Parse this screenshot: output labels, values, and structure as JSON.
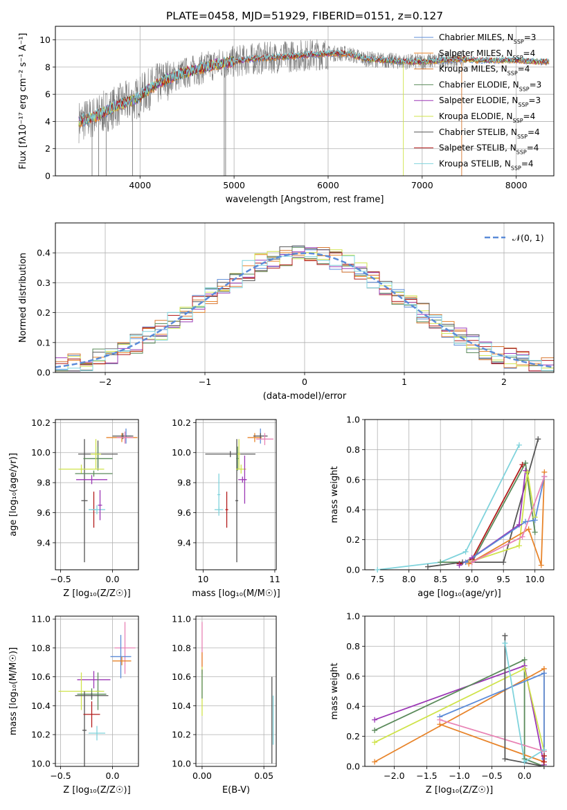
{
  "figure_title": "PLATE=0458, MJD=51929, FIBERID=0151, z=0.127",
  "colors": {
    "Chabrier MILES": "#5b8bd8",
    "Salpeter MILES": "#e8842a",
    "Kroupa MILES": "#d8762e",
    "Chabrier ELODIE": "#5a8a5a",
    "Salpeter ELODIE": "#9b37b5",
    "Kroupa ELODIE": "#cfe34a",
    "Chabrier STELIB": "#555555",
    "Salpeter STELIB": "#b21a1a",
    "Kroupa STELIB": "#7fd3dc",
    "pink": "#e882b4",
    "gauss": "#5b8bd8"
  },
  "chart_data": [
    {
      "id": "spectrum",
      "type": "line",
      "title": "PLATE=0458, MJD=51929, FIBERID=0151, z=0.127",
      "xlabel": "wavelength [Angstrom, rest frame]",
      "ylabel": "Flux [fλ10⁻¹⁷ erg cm⁻² s⁻¹ A⁻¹]",
      "xlim": [
        3100,
        8400
      ],
      "ylim": [
        0,
        11
      ],
      "xticks": [
        "4000",
        "5000",
        "6000",
        "7000",
        "8000"
      ],
      "yticks": [
        "0",
        "2",
        "4",
        "6",
        "8",
        "10"
      ],
      "legend": [
        "Chabrier MILES, N_SSP=3",
        "Salpeter MILES, N_SSP=4",
        "Kroupa MILES, N_SSP=4",
        "Chabrier ELODIE, N_SSP=3",
        "Salpeter ELODIE, N_SSP=3",
        "Kroupa ELODIE, N_SSP=4",
        "Chabrier STELIB, N_SSP=4",
        "Salpeter STELIB, N_SSP=4",
        "Kroupa STELIB, N_SSP=4"
      ],
      "legend_placement": "right",
      "continuum": {
        "x": [
          3350,
          3500,
          3650,
          3800,
          3950,
          4100,
          4250,
          4400,
          4600,
          4800,
          5000,
          5200,
          5400,
          5600,
          5800,
          6000,
          6200,
          6400,
          6600,
          6800,
          7000,
          7200,
          7400,
          7600,
          7800,
          8000,
          8200,
          8350
        ],
        "y": [
          4.0,
          4.3,
          4.8,
          5.3,
          5.6,
          6.4,
          7.0,
          7.4,
          7.8,
          8.2,
          8.4,
          8.6,
          8.7,
          8.8,
          8.9,
          9.0,
          9.0,
          8.6,
          8.5,
          8.4,
          8.4,
          8.5,
          8.6,
          8.5,
          8.5,
          8.5,
          8.4,
          8.4
        ]
      }
    },
    {
      "id": "residuals",
      "type": "histogram",
      "xlabel": "(data-model)/error",
      "ylabel": "Normed distribution",
      "xlim": [
        -2.5,
        2.5
      ],
      "ylim": [
        0,
        0.5
      ],
      "xticks": [
        "−2",
        "−1",
        "0",
        "1",
        "2"
      ],
      "yticks": [
        "0.0",
        "0.1",
        "0.2",
        "0.3",
        "0.4"
      ],
      "grid": true,
      "legend": [
        "𝒩(0, 1)"
      ],
      "legend_placement": "top-right",
      "bin_edges_range": [
        -2.5,
        2.5
      ],
      "bin_count": 40
    },
    {
      "id": "age_vs_Z",
      "type": "errorbar",
      "xlabel": "Z [log₁₀(Z/Z☉)]",
      "ylabel": "age  [log₁₀(age/yr)]",
      "xlim": [
        -0.55,
        0.25
      ],
      "ylim": [
        9.22,
        10.22
      ],
      "xticks": [
        "−0.5",
        "0.0"
      ],
      "yticks": [
        "9.4",
        "9.6",
        "9.8",
        "10.0",
        "10.2"
      ],
      "points": [
        {
          "model": "Chabrier MILES",
          "x": 0.13,
          "xerr": 0.05,
          "y": 10.11,
          "yerr": 0.05
        },
        {
          "model": "Salpeter MILES",
          "x": 0.09,
          "xerr": 0.15,
          "y": 10.1,
          "yerr": 0.03
        },
        {
          "model": "Chabrier STELIB",
          "x": 0.1,
          "xerr": 0.1,
          "y": 10.11,
          "yerr": 0.02
        },
        {
          "model": "pink",
          "x": 0.12,
          "xerr": 0.08,
          "y": 10.1,
          "yerr": 0.04
        },
        {
          "model": "Chabrier STELIB",
          "x": -0.27,
          "xerr": 0.03,
          "y": 9.68,
          "yerr": 0.41
        },
        {
          "model": "Chabrier STELIB",
          "x": -0.14,
          "xerr": 0.19,
          "y": 9.99,
          "yerr": 0.09
        },
        {
          "model": "Chabrier ELODIE",
          "x": -0.14,
          "xerr": 0.14,
          "y": 9.96,
          "yerr": 0.08
        },
        {
          "model": "Kroupa ELODIE",
          "x": -0.16,
          "xerr": 0.05,
          "y": 9.99,
          "yerr": 0.1
        },
        {
          "model": "Kroupa ELODIE",
          "x": -0.3,
          "xerr": 0.22,
          "y": 9.89,
          "yerr": 0.03
        },
        {
          "model": "Chabrier ELODIE",
          "x": -0.18,
          "xerr": 0.18,
          "y": 9.86,
          "yerr": 0.02
        },
        {
          "model": "Salpeter ELODIE",
          "x": -0.2,
          "xerr": 0.15,
          "y": 9.82,
          "yerr": 0.03
        },
        {
          "model": "Salpeter STELIB",
          "x": -0.18,
          "xerr": 0.02,
          "y": 9.62,
          "yerr": 0.12
        },
        {
          "model": "Kroupa STELIB",
          "x": -0.15,
          "xerr": 0.08,
          "y": 9.62,
          "yerr": 0.03
        },
        {
          "model": "Salpeter ELODIE",
          "x": -0.12,
          "xerr": 0.02,
          "y": 9.65,
          "yerr": 0.1
        }
      ]
    },
    {
      "id": "age_vs_mass",
      "type": "errorbar",
      "xlabel": "mass [log₁₀(M/M☉)]",
      "ylabel": "",
      "xlim": [
        9.9,
        11.02
      ],
      "ylim": [
        9.22,
        10.22
      ],
      "xticks": [
        "10",
        "11"
      ],
      "yticks": [
        "9.4",
        "9.6",
        "9.8",
        "10.0",
        "10.2"
      ],
      "points": [
        {
          "model": "Chabrier MILES",
          "x": 10.8,
          "xerr": 0.08,
          "y": 10.11,
          "yerr": 0.05
        },
        {
          "model": "Salpeter MILES",
          "x": 10.72,
          "xerr": 0.1,
          "y": 10.1,
          "yerr": 0.03
        },
        {
          "model": "Chabrier STELIB",
          "x": 10.8,
          "xerr": 0.1,
          "y": 10.11,
          "yerr": 0.02
        },
        {
          "model": "pink",
          "x": 10.86,
          "xerr": 0.12,
          "y": 10.09,
          "yerr": 0.04
        },
        {
          "model": "Chabrier STELIB",
          "x": 10.47,
          "xerr": 0.02,
          "y": 9.68,
          "yerr": 0.41
        },
        {
          "model": "Chabrier STELIB",
          "x": 10.38,
          "xerr": 0.35,
          "y": 9.99,
          "yerr": 0.02
        },
        {
          "model": "Chabrier ELODIE",
          "x": 10.48,
          "xerr": 0.02,
          "y": 9.96,
          "yerr": 0.08
        },
        {
          "model": "Kroupa ELODIE",
          "x": 10.5,
          "xerr": 0.02,
          "y": 9.99,
          "yerr": 0.1
        },
        {
          "model": "Kroupa ELODIE",
          "x": 10.53,
          "xerr": 0.07,
          "y": 9.89,
          "yerr": 0.03
        },
        {
          "model": "Salpeter ELODIE",
          "x": 10.58,
          "xerr": 0.02,
          "y": 9.82,
          "yerr": 0.16
        },
        {
          "model": "Salpeter ELODIE",
          "x": 10.55,
          "xerr": 0.06,
          "y": 9.82,
          "yerr": 0.02
        },
        {
          "model": "Salpeter STELIB",
          "x": 10.33,
          "xerr": 0.02,
          "y": 9.62,
          "yerr": 0.12
        },
        {
          "model": "Kroupa STELIB",
          "x": 10.22,
          "xerr": 0.06,
          "y": 9.62,
          "yerr": 0.02
        },
        {
          "model": "Kroupa STELIB",
          "x": 10.22,
          "xerr": 0.02,
          "y": 9.72,
          "yerr": 0.14
        }
      ]
    },
    {
      "id": "massweight_vs_age",
      "type": "line",
      "xlabel": "age  [log₁₀(age/yr)]",
      "ylabel": "mass weight",
      "xlim": [
        7.3,
        10.3
      ],
      "ylim": [
        0,
        1
      ],
      "xticks": [
        "7.5",
        "8.0",
        "8.5",
        "9.0",
        "9.5",
        "10.0"
      ],
      "yticks": [
        "0.0",
        "0.2",
        "0.4",
        "0.6",
        "0.8",
        "1.0"
      ],
      "grid": true,
      "series": [
        {
          "model": "Kroupa STELIB",
          "x": [
            7.5,
            8.5,
            8.9,
            9.75
          ],
          "y": [
            0.0,
            0.05,
            0.12,
            0.83
          ]
        },
        {
          "model": "Chabrier ELODIE",
          "x": [
            8.5,
            9.0,
            9.85,
            10.0
          ],
          "y": [
            0.05,
            0.05,
            0.71,
            0.25
          ]
        },
        {
          "model": "Chabrier STELIB",
          "x": [
            8.3,
            8.85,
            9.5,
            10.05
          ],
          "y": [
            0.02,
            0.05,
            0.05,
            0.87
          ]
        },
        {
          "model": "Salpeter STELIB",
          "x": [
            8.8,
            9.0,
            9.8
          ],
          "y": [
            0.04,
            0.07,
            0.7
          ]
        },
        {
          "model": "Salpeter ELODIE",
          "x": [
            8.8,
            9.0,
            9.75,
            9.85
          ],
          "y": [
            0.03,
            0.08,
            0.3,
            0.66
          ]
        },
        {
          "model": "Kroupa ELODIE",
          "x": [
            8.95,
            9.75,
            9.88,
            10.0
          ],
          "y": [
            0.05,
            0.16,
            0.65,
            0.35
          ]
        },
        {
          "model": "Salpeter MILES",
          "x": [
            8.95,
            9.9,
            10.1,
            10.15
          ],
          "y": [
            0.04,
            0.27,
            0.03,
            0.65
          ]
        },
        {
          "model": "Chabrier MILES",
          "x": [
            8.9,
            9.85,
            10.0,
            10.15
          ],
          "y": [
            0.05,
            0.32,
            0.33,
            0.62
          ]
        },
        {
          "model": "pink",
          "x": [
            9.0,
            9.8,
            10.15
          ],
          "y": [
            0.05,
            0.22,
            0.62
          ]
        }
      ]
    },
    {
      "id": "mass_vs_Z",
      "type": "errorbar",
      "xlabel": "Z [log₁₀(Z/Z☉)]",
      "ylabel": "mass [log₁₀(M/M☉)]",
      "xlim": [
        -0.55,
        0.25
      ],
      "ylim": [
        9.98,
        11.02
      ],
      "xticks": [
        "−0.5",
        "0.0"
      ],
      "yticks": [
        "10.0",
        "10.2",
        "10.4",
        "10.6",
        "10.8",
        "11.0"
      ],
      "points": [
        {
          "model": "pink",
          "x": 0.12,
          "xerr": 0.1,
          "y": 10.8,
          "yerr": 0.18
        },
        {
          "model": "Chabrier MILES",
          "x": 0.08,
          "xerr": 0.1,
          "y": 10.74,
          "yerr": 0.15
        },
        {
          "model": "Salpeter MILES",
          "x": 0.09,
          "xerr": 0.09,
          "y": 10.71,
          "yerr": 0.03
        },
        {
          "model": "Salpeter ELODIE",
          "x": -0.18,
          "xerr": 0.16,
          "y": 10.58,
          "yerr": 0.06
        },
        {
          "model": "Chabrier ELODIE",
          "x": -0.14,
          "xerr": 0.02,
          "y": 10.5,
          "yerr": 0.13
        },
        {
          "model": "Kroupa ELODIE",
          "x": -0.3,
          "xerr": 0.22,
          "y": 10.5,
          "yerr": 0.13
        },
        {
          "model": "Chabrier ELODIE",
          "x": -0.2,
          "xerr": 0.14,
          "y": 10.48,
          "yerr": 0.04
        },
        {
          "model": "Chabrier STELIB",
          "x": -0.2,
          "xerr": 0.16,
          "y": 10.47,
          "yerr": 0.02
        },
        {
          "model": "Chabrier STELIB",
          "x": -0.27,
          "xerr": 0.02,
          "y": 10.23,
          "yerr": 0.27
        },
        {
          "model": "Salpeter STELIB",
          "x": -0.2,
          "xerr": 0.08,
          "y": 10.34,
          "yerr": 0.09
        },
        {
          "model": "Kroupa STELIB",
          "x": -0.15,
          "xerr": 0.08,
          "y": 10.21,
          "yerr": 0.05
        }
      ]
    },
    {
      "id": "mass_vs_EBV",
      "type": "errorbar",
      "xlabel": "E(B-V)",
      "ylabel": "",
      "xlim": [
        -0.005,
        0.06
      ],
      "ylim": [
        9.98,
        11.02
      ],
      "xticks": [
        "0.00",
        "0.05"
      ],
      "yticks": [
        "10.0",
        "10.2",
        "10.4",
        "10.6",
        "10.8",
        "11.0"
      ],
      "points": [
        {
          "model": "pink",
          "x": 0.0,
          "xerr": 0.0,
          "y": 10.8,
          "yerr": 0.18
        },
        {
          "model": "Salpeter MILES",
          "x": 0.0,
          "xerr": 0.0,
          "y": 10.72,
          "yerr": 0.05
        },
        {
          "model": "Kroupa ELODIE",
          "x": 0.0,
          "xerr": 0.0,
          "y": 10.5,
          "yerr": 0.17
        },
        {
          "model": "Chabrier ELODIE",
          "x": 0.0,
          "xerr": 0.0,
          "y": 10.55,
          "yerr": 0.1
        },
        {
          "model": "Chabrier STELIB",
          "x": 0.0565,
          "xerr": 0.0,
          "y": 10.3,
          "yerr": 0.3
        },
        {
          "model": "Kroupa STELIB",
          "x": 0.0575,
          "xerr": 0.0,
          "y": 10.3,
          "yerr": 0.17
        }
      ]
    },
    {
      "id": "massweight_vs_Z",
      "type": "line",
      "xlabel": "Z [log₁₀(Z/Z☉)]",
      "ylabel": "mass weight",
      "xlim": [
        -2.45,
        0.45
      ],
      "ylim": [
        0,
        1
      ],
      "xticks": [
        "−2.0",
        "−1.5",
        "−1.0",
        "−0.5",
        "0.0"
      ],
      "yticks": [
        "0.0",
        "0.2",
        "0.4",
        "0.6",
        "0.8",
        "1.0"
      ],
      "grid": true,
      "series": [
        {
          "model": "Salpeter ELODIE",
          "x": [
            -2.3,
            0.0,
            0.3
          ],
          "y": [
            0.31,
            0.67,
            0.01
          ]
        },
        {
          "model": "Chabrier ELODIE",
          "x": [
            -2.3,
            0.0,
            0.0,
            0.3
          ],
          "y": [
            0.24,
            0.71,
            0.05,
            0.0
          ]
        },
        {
          "model": "Kroupa ELODIE",
          "x": [
            -2.3,
            0.0,
            0.3
          ],
          "y": [
            0.16,
            0.65,
            0.1
          ]
        },
        {
          "model": "Salpeter MILES",
          "x": [
            -2.3,
            0.3,
            0.3,
            -1.3
          ],
          "y": [
            0.03,
            0.65,
            0.03,
            0.28
          ]
        },
        {
          "model": "Chabrier MILES",
          "x": [
            -1.3,
            0.3,
            0.3
          ],
          "y": [
            0.33,
            0.62,
            0.05
          ]
        },
        {
          "model": "pink",
          "x": [
            -1.3,
            0.3
          ],
          "y": [
            0.31,
            0.1
          ]
        },
        {
          "model": "Chabrier STELIB",
          "x": [
            -0.3,
            -0.3,
            0.3
          ],
          "y": [
            0.87,
            0.05,
            0.0
          ]
        },
        {
          "model": "Kroupa STELIB",
          "x": [
            -0.3,
            0.0,
            0.3
          ],
          "y": [
            0.82,
            0.03,
            0.11
          ]
        },
        {
          "model": "Salpeter STELIB",
          "x": [
            0.3,
            0.3
          ],
          "y": [
            0.07,
            0.03
          ]
        }
      ]
    }
  ]
}
